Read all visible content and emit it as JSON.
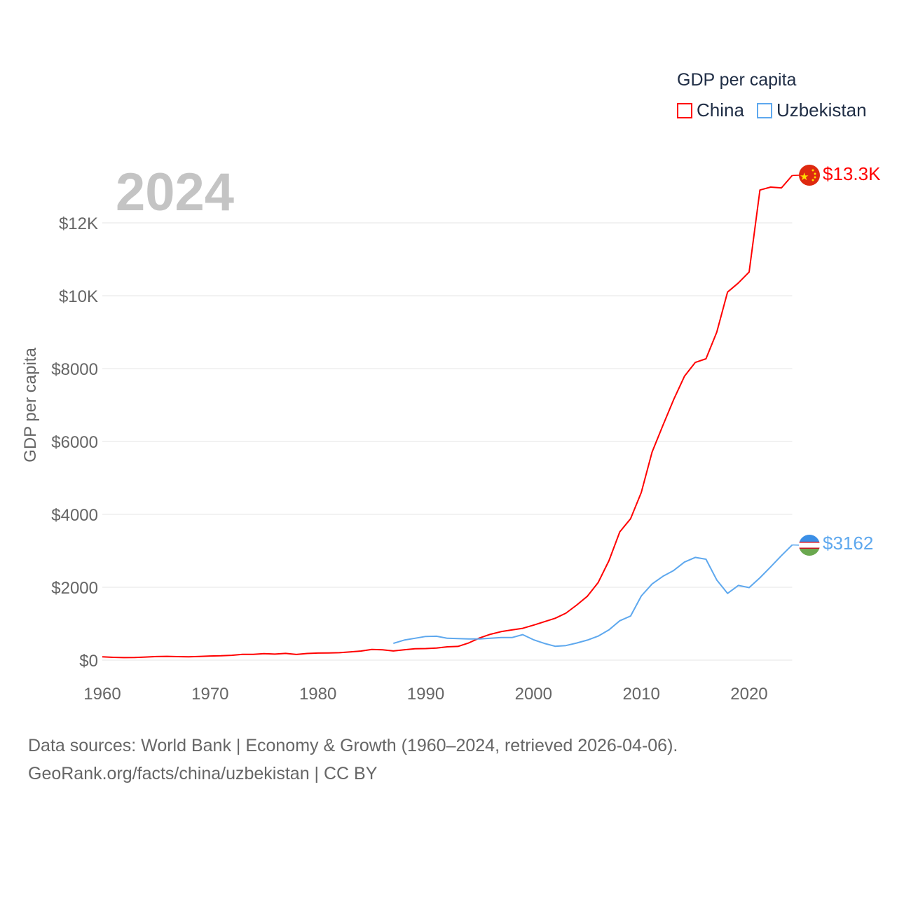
{
  "chart_data": {
    "type": "line",
    "title": "GDP per capita",
    "year_label": "2024",
    "ylabel": "GDP per capita",
    "xlabel": "",
    "xlim": [
      1960,
      2024
    ],
    "ylim": [
      0,
      13300
    ],
    "x_ticks": [
      1960,
      1970,
      1980,
      1990,
      2000,
      2010,
      2020
    ],
    "y_ticks": [
      {
        "value": 0,
        "label": "$0"
      },
      {
        "value": 2000,
        "label": "$2000"
      },
      {
        "value": 4000,
        "label": "$4000"
      },
      {
        "value": 6000,
        "label": "$6000"
      },
      {
        "value": 8000,
        "label": "$8000"
      },
      {
        "value": 10000,
        "label": "$10K"
      },
      {
        "value": 12000,
        "label": "$12K"
      }
    ],
    "grid": true,
    "legend_placement": "top-right",
    "series": [
      {
        "name": "China",
        "color": "#ff0000",
        "end_label": "$13.3K",
        "flag": "china-flag",
        "start_year": 1960,
        "values": [
          90,
          76,
          70,
          74,
          85,
          98,
          104,
          97,
          91,
          100,
          113,
          119,
          132,
          157,
          160,
          178,
          165,
          185,
          156,
          183,
          195,
          197,
          203,
          225,
          250,
          294,
          282,
          252,
          284,
          311,
          318,
          333,
          366,
          377,
          473,
          610,
          709,
          782,
          829,
          873,
          959,
          1053,
          1149,
          1289,
          1509,
          1753,
          2130,
          2730,
          3520,
          3880,
          4600,
          5710,
          6440,
          7150,
          7790,
          8170,
          8270,
          9000,
          10100,
          10350,
          10650,
          12900,
          12980,
          12960,
          13300
        ]
      },
      {
        "name": "Uzbekistan",
        "color": "#5ea8ee",
        "end_label": "$3162",
        "flag": "uzbekistan-flag",
        "start_year": 1987,
        "values": [
          460,
          550,
          600,
          650,
          655,
          600,
          590,
          580,
          580,
          600,
          620,
          620,
          700,
          560,
          460,
          380,
          400,
          470,
          550,
          660,
          830,
          1080,
          1210,
          1760,
          2090,
          2300,
          2460,
          2690,
          2820,
          2770,
          2200,
          1830,
          2050,
          1990,
          2260,
          2560,
          2870,
          3162
        ]
      }
    ]
  },
  "footer": {
    "line1": "Data sources: World Bank | Economy & Growth (1960–2024, retrieved 2026-04-06).",
    "line2": "GeoRank.org/facts/china/uzbekistan | CC BY"
  }
}
